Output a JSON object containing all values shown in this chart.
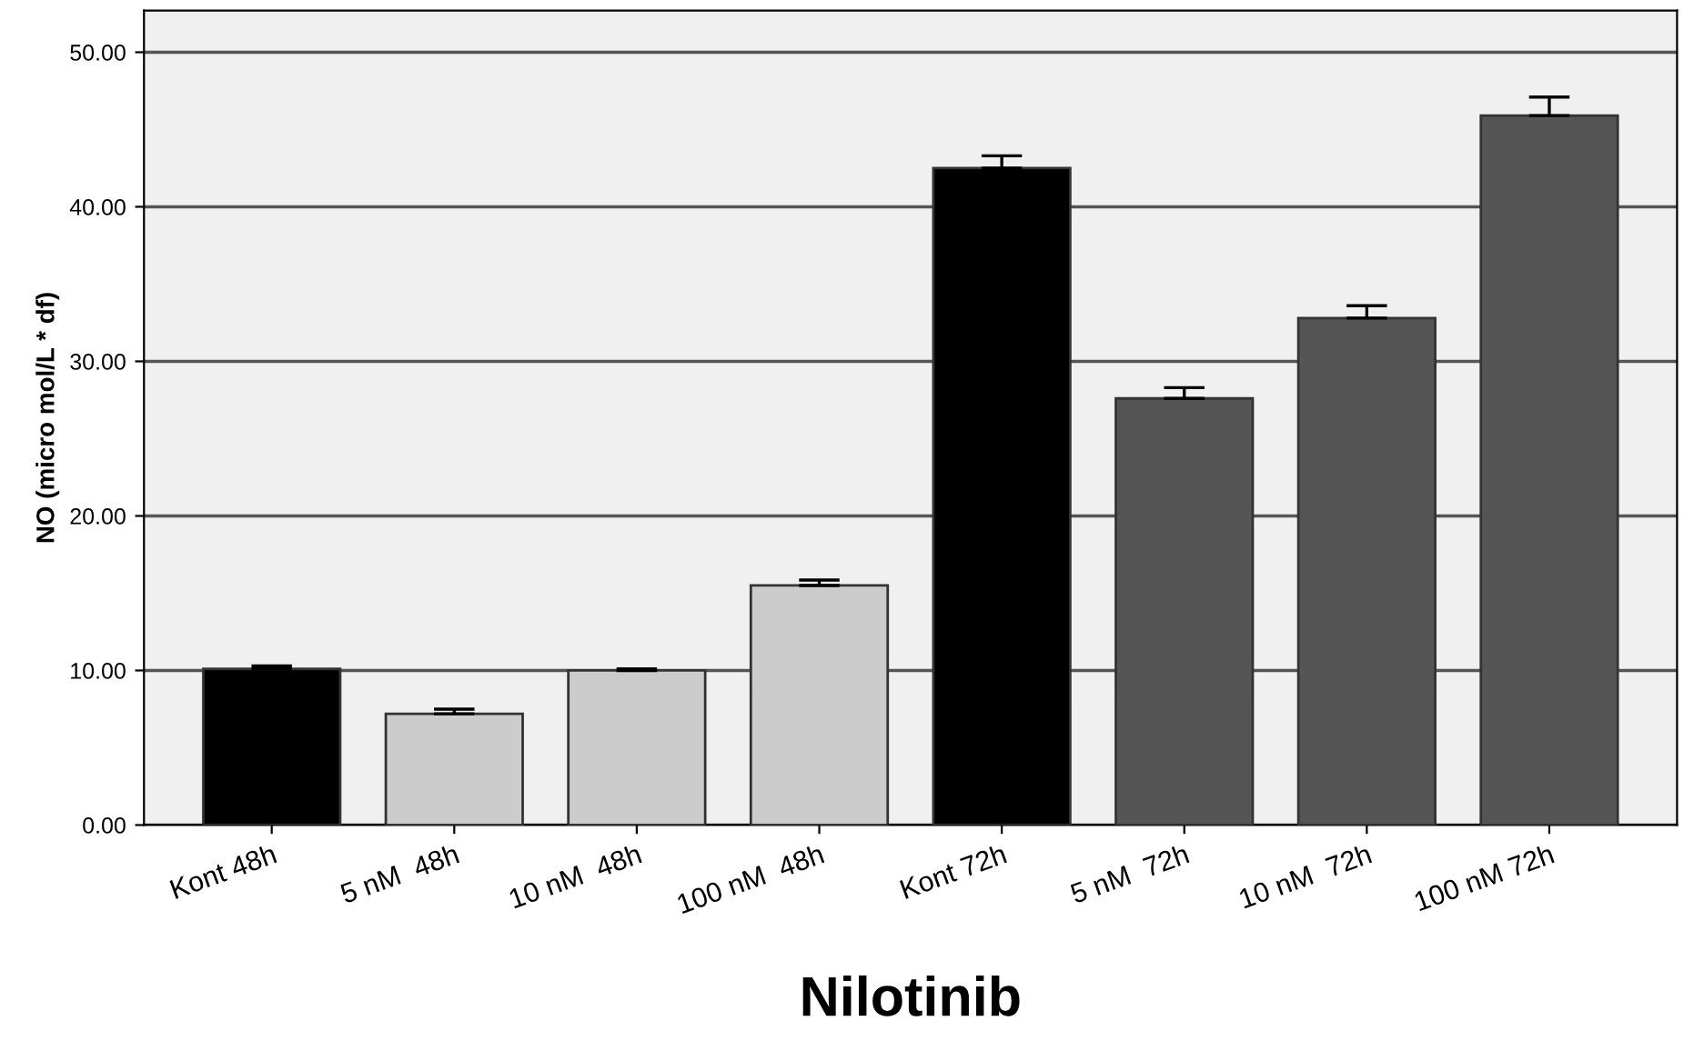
{
  "chart_data": {
    "type": "bar",
    "xlabel": "Nilotinib",
    "ylabel": "NO (micro mol/L * df)",
    "categories": [
      "Kont 48h",
      "5 nM  48h",
      "10 nM  48h",
      "100 nM  48h",
      "Kont 72h",
      "5 nM  72h",
      "10 nM  72h",
      "100 nM 72h"
    ],
    "values": [
      10.1,
      7.2,
      10.0,
      15.5,
      42.5,
      27.6,
      32.8,
      45.9
    ],
    "errors": [
      0.2,
      0.3,
      0.1,
      0.35,
      0.8,
      0.7,
      0.8,
      1.2
    ],
    "colors": [
      "#000000",
      "#cccccc",
      "#cccccc",
      "#cccccc",
      "#000000",
      "#555555",
      "#555555",
      "#555555"
    ],
    "ylim": [
      0,
      52.7
    ],
    "yticks": [
      {
        "value": 0,
        "label": "0.00"
      },
      {
        "value": 10,
        "label": "10.00"
      },
      {
        "value": 20,
        "label": "20.00"
      },
      {
        "value": 30,
        "label": "30.00"
      },
      {
        "value": 40,
        "label": "40.00"
      },
      {
        "value": 50,
        "label": "50.00"
      }
    ],
    "grid": "y"
  }
}
